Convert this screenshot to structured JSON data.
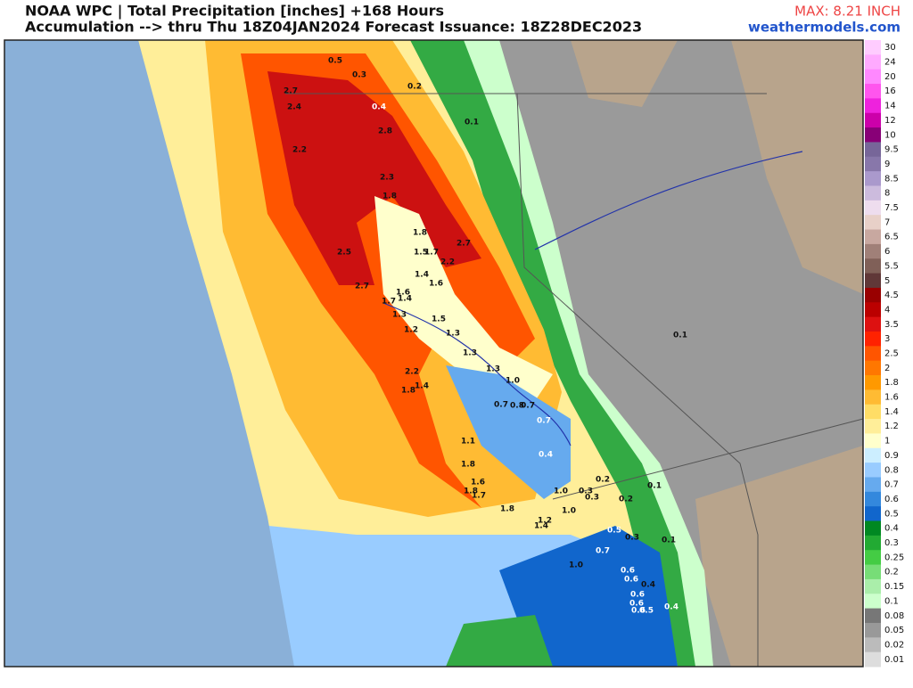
{
  "header": {
    "title": "NOAA WPC | Total Precipitation [inches] +168 Hours",
    "subtitle": "Accumulation --> thru Thu 18Z04JAN2024   Forecast Issuance: 18Z28DEC2023",
    "max": "MAX: 8.21 INCH",
    "site": "weathermodels.com"
  },
  "colorbar": {
    "labels": [
      "30",
      "24",
      "20",
      "16",
      "14",
      "12",
      "10",
      "9.5",
      "9",
      "8.5",
      "8",
      "7.5",
      "7",
      "6.5",
      "6",
      "5.5",
      "5",
      "4.5",
      "4",
      "3.5",
      "3",
      "2.5",
      "2",
      "1.8",
      "1.6",
      "1.4",
      "1.2",
      "1",
      "0.9",
      "0.8",
      "0.7",
      "0.6",
      "0.5",
      "0.4",
      "0.3",
      "0.25",
      "0.2",
      "0.15",
      "0.1",
      "0.08",
      "0.05",
      "0.02",
      "0.01"
    ],
    "colors": [
      "#ffccff",
      "#ffaaff",
      "#ff88ff",
      "#ff55ee",
      "#ee22dd",
      "#cc00aa",
      "#880077",
      "#776699",
      "#8877aa",
      "#aa99cc",
      "#ccbbdd",
      "#eeddee",
      "#e8d0c8",
      "#c8a8a0",
      "#a08078",
      "#806058",
      "#603838",
      "#990000",
      "#bb0000",
      "#dd1111",
      "#ff2200",
      "#ff5500",
      "#ff7700",
      "#ff9900",
      "#ffbb33",
      "#ffdd66",
      "#ffee99",
      "#ffffcc",
      "#cceeff",
      "#99ccff",
      "#66aaee",
      "#3388dd",
      "#1166cc",
      "#008822",
      "#22aa33",
      "#44cc44",
      "#77dd77",
      "#aaeeaa",
      "#ccffcc",
      "#777777",
      "#999999",
      "#bbbbbb",
      "#dddddd"
    ]
  },
  "map": {
    "labels": [
      "0.5",
      "0.3",
      "0.2",
      "2.7",
      "0.4",
      "2.4",
      "0.1",
      "2.8",
      "2.2",
      "2.3",
      "1.8",
      "1.8",
      "2.7",
      "1.5",
      "1.7",
      "2.2",
      "2.5",
      "1.4",
      "1.6",
      "2.7",
      "1.6",
      "1.4",
      "1.7",
      "1.3",
      "1.5",
      "1.2",
      "1.3",
      "0.1",
      "1.3",
      "1.3",
      "1.0",
      "2.2",
      "1.4",
      "1.8",
      "0.7",
      "0.8",
      "0.7",
      "0.7",
      "1.1",
      "0.4",
      "1.8",
      "1.6",
      "0.2",
      "1.8",
      "1.7",
      "1.0",
      "0.3",
      "0.3",
      "0.2",
      "0.1",
      "1.8",
      "1.0",
      "1.2",
      "1.4",
      "0.5",
      "0.3",
      "0.1",
      "0.7",
      "1.0",
      "0.6",
      "0.6",
      "0.4",
      "0.6",
      "0.6",
      "0.4",
      "0.6",
      "0.5"
    ]
  }
}
